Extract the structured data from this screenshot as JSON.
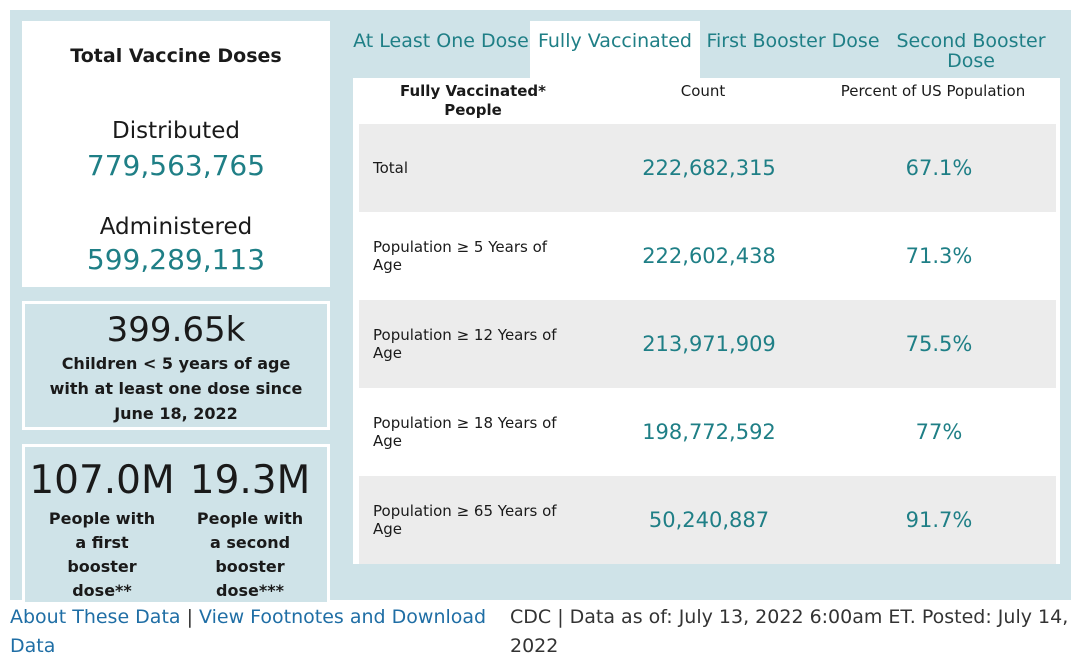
{
  "totals": {
    "title": "Total Vaccine Doses",
    "distributed_label": "Distributed",
    "distributed_value": "779,563,765",
    "administered_label": "Administered",
    "administered_value": "599,289,113"
  },
  "children": {
    "value": "399.65k",
    "label": "Children < 5 years of age with at least one dose since June 18, 2022"
  },
  "boosters": [
    {
      "value": "107.0M",
      "label": "People with a first booster dose**"
    },
    {
      "value": "19.3M",
      "label": "People with a second booster dose***"
    }
  ],
  "tabs": [
    {
      "label": "At Least One Dose",
      "active": false
    },
    {
      "label": "Fully Vaccinated",
      "active": true
    },
    {
      "label": "First Booster Dose",
      "active": false
    },
    {
      "label": "Second Booster Dose",
      "active": false
    }
  ],
  "table": {
    "headers": [
      "Fully Vaccinated* People",
      "Count",
      "Percent of US Population"
    ],
    "rows": [
      {
        "label": "Total",
        "count": "222,682,315",
        "percent": "67.1%"
      },
      {
        "label": "Population ≥ 5 Years of Age",
        "count": "222,602,438",
        "percent": "71.3%"
      },
      {
        "label": "Population ≥ 12 Years of Age",
        "count": "213,971,909",
        "percent": "75.5%"
      },
      {
        "label": "Population ≥ 18 Years of Age",
        "count": "198,772,592",
        "percent": "77%"
      },
      {
        "label": "Population ≥ 65 Years of Age",
        "count": "50,240,887",
        "percent": "91.7%"
      }
    ]
  },
  "footer": {
    "about_link": "About These Data",
    "separator": "|",
    "footnotes_link": "View Footnotes and Download Data",
    "note": "CDC | Data as of: July 13, 2022 6:00am ET. Posted: July 14, 2022"
  },
  "colors": {
    "accent": "#1f7f86",
    "panel": "#cfe3e8",
    "link": "#1f6ea5"
  }
}
